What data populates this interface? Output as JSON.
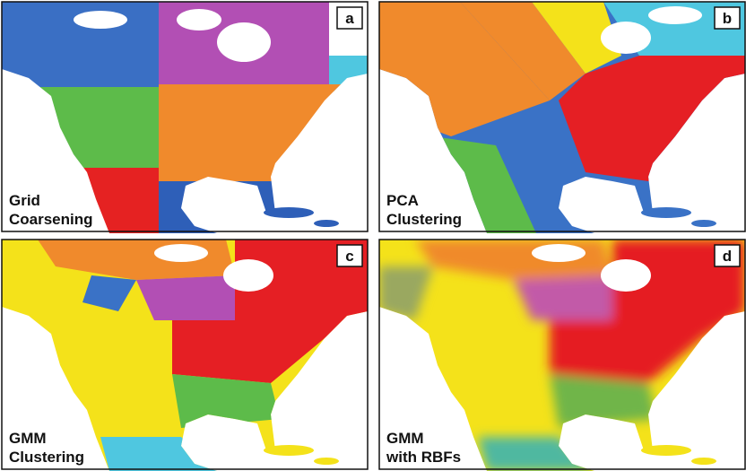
{
  "panels": [
    {
      "letter": "a",
      "label": [
        "Grid",
        "Coarsening"
      ]
    },
    {
      "letter": "b",
      "label": [
        "PCA",
        "Clustering"
      ]
    },
    {
      "letter": "c",
      "label": [
        "GMM",
        "Clustering"
      ]
    },
    {
      "letter": "d",
      "label": [
        "GMM",
        "with RBFs"
      ]
    }
  ]
}
